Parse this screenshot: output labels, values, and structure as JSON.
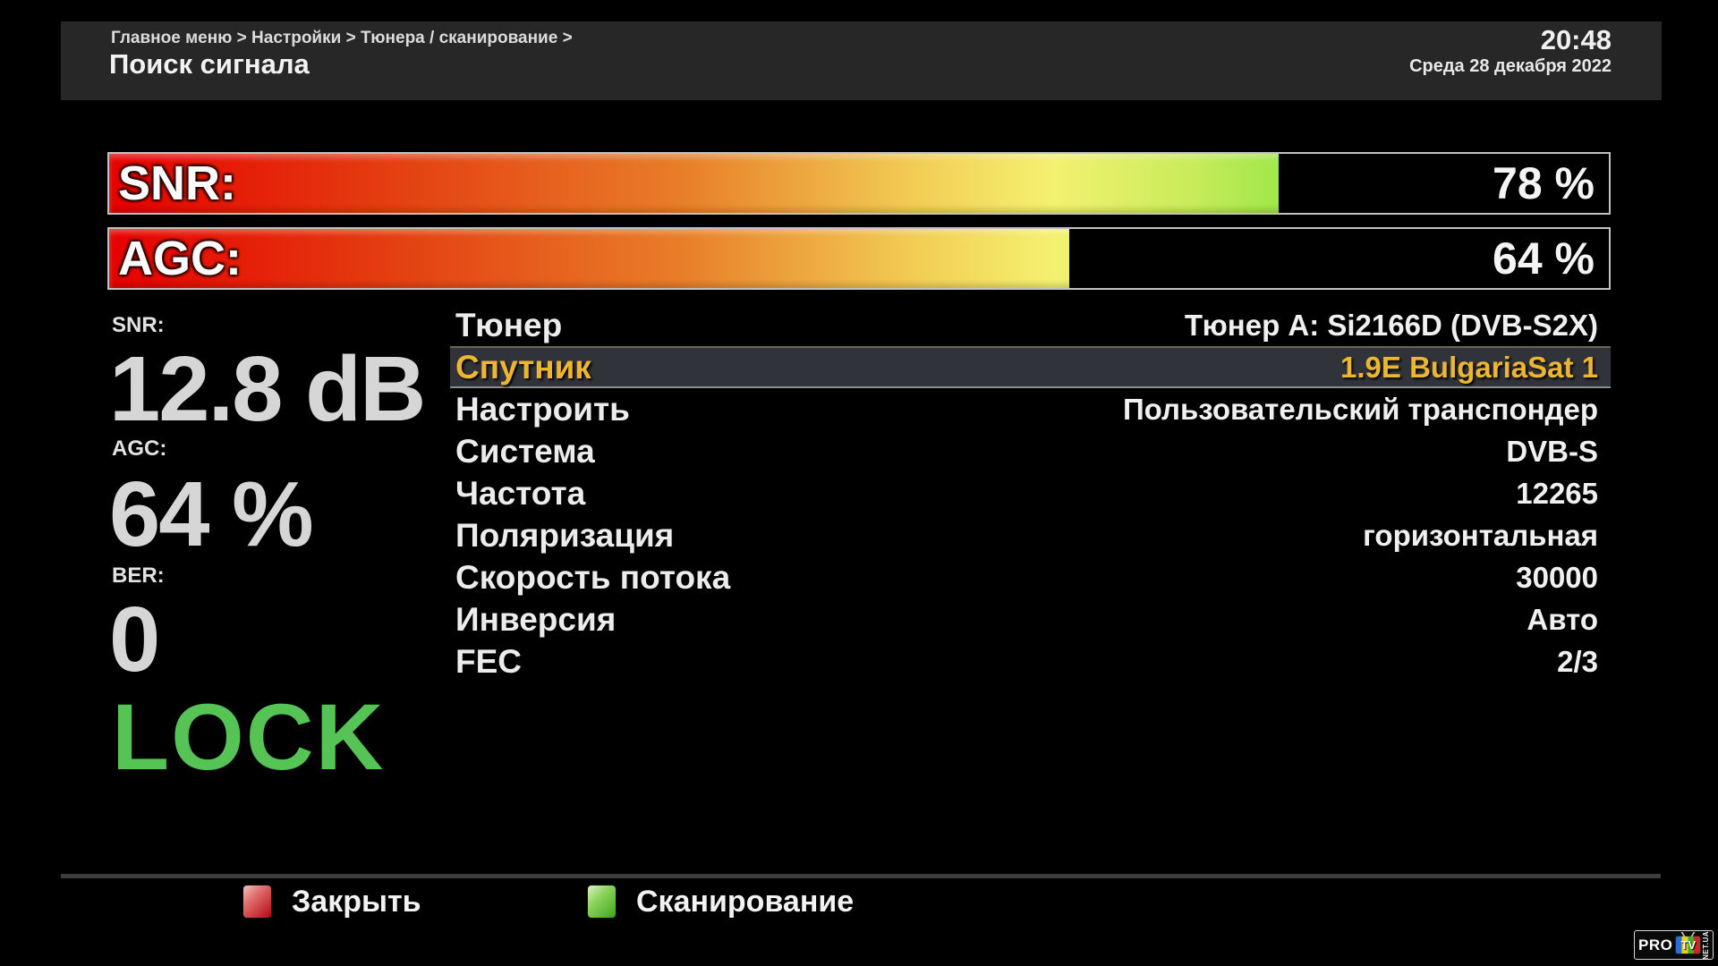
{
  "header": {
    "breadcrumb": "Главное меню > Настройки > Тюнера / сканирование >",
    "title": "Поиск сигнала",
    "time": "20:48",
    "date": "Среда 28 декабря 2022"
  },
  "bars": {
    "snr": {
      "label": "SNR:",
      "value_pct": 78,
      "value_text": "78 %"
    },
    "agc": {
      "label": "AGC:",
      "value_pct": 64,
      "value_text": "64 %"
    }
  },
  "readings": {
    "snr_label": "SNR:",
    "snr_value": "12.8 dB",
    "agc_label": "AGC:",
    "agc_value": "64 %",
    "ber_label": "BER:",
    "ber_value": "0",
    "lock_text": "LOCK",
    "lock_color": "#55c455"
  },
  "settings": {
    "rows": [
      {
        "label": "Тюнер",
        "value": "Тюнер A: Si2166D (DVB-S2X)",
        "selected": false
      },
      {
        "label": "Спутник",
        "value": "1.9E BulgariaSat 1",
        "selected": true
      },
      {
        "label": "Настроить",
        "value": "Пользовательский транспондер",
        "selected": false
      },
      {
        "label": "Система",
        "value": "DVB-S",
        "selected": false
      },
      {
        "label": "Частота",
        "value": "12265",
        "selected": false
      },
      {
        "label": "Поляризация",
        "value": "горизонтальная",
        "selected": false
      },
      {
        "label": "Скорость потока",
        "value": "30000",
        "selected": false
      },
      {
        "label": "Инверсия",
        "value": "Авто",
        "selected": false
      },
      {
        "label": "FEC",
        "value": "2/3",
        "selected": false
      }
    ],
    "selected_text_color": "#eeb62f"
  },
  "footer": {
    "buttons": [
      {
        "key": "red-key-icon",
        "key_color": "#b00a14",
        "label": "Закрыть"
      },
      {
        "key": "green-key-icon",
        "key_color": "#3fa51a",
        "label": "Сканирование"
      }
    ]
  },
  "logo": {
    "pro": "PRO",
    "tv": "TV",
    "net": "NET.UA"
  },
  "colors": {
    "background": "#000000",
    "header_bg": "#272727",
    "gradient_start": "#e60000",
    "gradient_end": "#55d81f",
    "selected_row_bg": "#31333a",
    "gold": "#eeb62f",
    "lock_green": "#55c455"
  }
}
